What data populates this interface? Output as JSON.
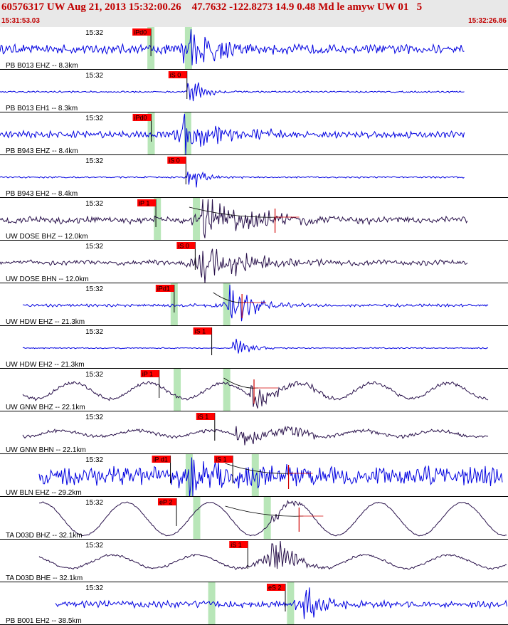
{
  "header": {
    "title": "60576317 UW Aug 21, 2013 15:32:00.26    47.7632 -122.8273 14.9 0.48 Md le amyw UW 01   5",
    "start_time": "15:31:53.03",
    "end_time": "15:32:26.86"
  },
  "colors": {
    "header_background": "#e8e8e8",
    "header_text": "#c00000",
    "trace_blue": "#0000e0",
    "trace_dark": "#28104a",
    "pick_background": "#ff0000",
    "window_shade": "#b8e6b8",
    "separator": "#000000"
  },
  "chart_data": {
    "type": "line",
    "title": "",
    "xlabel": "",
    "ylabel": "",
    "x_range_seconds": [
      0,
      33.83
    ],
    "time_tick_label": "15:32",
    "time_tick_seconds": 6.97,
    "traces": [
      {
        "label": "PB B013 EHZ -- 8.3km",
        "color": "blue",
        "start": 0.0,
        "end": 30.96,
        "noise": 0.16,
        "period": 0.3,
        "long_amp": 0,
        "long_period": 0,
        "arrival": 12.2,
        "amp": 0.92,
        "decay": 2.5,
        "picks": [
          {
            "label": "iPd0",
            "t": 10.05
          }
        ],
        "shades": [
          10.05,
          12.55
        ],
        "curve": null
      },
      {
        "label": "PB B013 EH1 -- 8.3km",
        "color": "blue",
        "start": 0.0,
        "end": 30.96,
        "noise": 0.03,
        "period": 0.3,
        "long_amp": 0,
        "long_period": 0,
        "arrival": 12.5,
        "amp": 0.6,
        "decay": 0.9,
        "picks": [
          {
            "label": "iS 0",
            "t": 12.45
          }
        ],
        "shades": [],
        "curve": null
      },
      {
        "label": "PB B943 EHZ -- 8.4km",
        "color": "blue",
        "start": 0.0,
        "end": 30.96,
        "noise": 0.12,
        "period": 0.3,
        "long_amp": 0,
        "long_period": 0,
        "arrival": 12.2,
        "amp": 0.88,
        "decay": 2.4,
        "picks": [
          {
            "label": "iPd0",
            "t": 10.07
          }
        ],
        "shades": [
          10.07,
          12.5
        ],
        "curve": null
      },
      {
        "label": "PB B943 EH2 -- 8.4km",
        "color": "blue",
        "start": 0.0,
        "end": 30.96,
        "noise": 0.03,
        "period": 0.3,
        "long_amp": 0,
        "long_period": 0,
        "arrival": 12.5,
        "amp": 0.58,
        "decay": 0.9,
        "picks": [
          {
            "label": "iS 0",
            "t": 12.38
          }
        ],
        "shades": [],
        "curve": null
      },
      {
        "label": "UW DOSE BHZ -- 12.0km",
        "color": "dark",
        "start": 0.0,
        "end": 31.2,
        "noise": 0.11,
        "period": 0.38,
        "long_amp": 0.05,
        "long_period": 4.0,
        "arrival": 13.5,
        "amp": 0.82,
        "decay": 3.2,
        "picks": [
          {
            "label": "iP 1",
            "t": 10.38
          }
        ],
        "shades": [
          10.48,
          13.08
        ],
        "curve": {
          "from": 12.6,
          "to": 18.6
        }
      },
      {
        "label": "UW DOSE BHN -- 12.0km",
        "color": "dark",
        "start": 0.0,
        "end": 31.2,
        "noise": 0.08,
        "period": 0.38,
        "long_amp": 0.04,
        "long_period": 4.0,
        "arrival": 13.2,
        "amp": 0.8,
        "decay": 3.4,
        "picks": [
          {
            "label": "iS 0",
            "t": 13.0
          }
        ],
        "shades": [],
        "curve": null
      },
      {
        "label": "UW HDW EHZ -- 21.3km",
        "color": "blue",
        "start": 1.5,
        "end": 32.5,
        "noise": 0.05,
        "period": 0.3,
        "long_amp": 0,
        "long_period": 0,
        "arrival": 15.3,
        "amp": 0.78,
        "decay": 1.5,
        "picks": [
          {
            "label": "iPd1",
            "t": 11.6
          }
        ],
        "shades": [
          11.6,
          15.1
        ],
        "curve": {
          "from": 14.2,
          "to": 16.4
        }
      },
      {
        "label": "UW HDW EH2 -- 21.3km",
        "color": "blue",
        "start": 1.5,
        "end": 32.5,
        "noise": 0.02,
        "period": 0.3,
        "long_amp": 0,
        "long_period": 0,
        "arrival": 15.5,
        "amp": 0.42,
        "decay": 1.0,
        "picks": [
          {
            "label": "iS 1",
            "t": 14.1
          }
        ],
        "shades": [],
        "curve": null
      },
      {
        "label": "UW GNW BHZ -- 22.1km",
        "color": "dark",
        "start": 1.5,
        "end": 32.5,
        "noise": 0.06,
        "period": 0.35,
        "long_amp": 0.38,
        "long_period": 5.0,
        "arrival": 16.6,
        "amp": 0.42,
        "decay": 2.0,
        "picks": [
          {
            "label": "iP 1",
            "t": 10.6
          }
        ],
        "shades": [
          11.8,
          15.1
        ],
        "curve": {
          "from": 14.9,
          "to": 17.2
        }
      },
      {
        "label": "UW GNW BHN -- 22.1km",
        "color": "dark",
        "start": 1.5,
        "end": 32.5,
        "noise": 0.06,
        "period": 0.35,
        "long_amp": 0.15,
        "long_period": 5.0,
        "arrival": 15.7,
        "amp": 0.46,
        "decay": 3.2,
        "picks": [
          {
            "label": "iS 1",
            "t": 14.3
          }
        ],
        "shades": [],
        "curve": null
      },
      {
        "label": "UW BLN EHZ -- 29.2km",
        "color": "blue",
        "start": 2.6,
        "end": 33.5,
        "noise": 0.36,
        "period": 0.25,
        "long_amp": 0,
        "long_period": 0,
        "arrival": 12.6,
        "amp": 0.62,
        "decay": 4.0,
        "picks": [
          {
            "label": "iP d1",
            "t": 11.35
          },
          {
            "label": "iS 1",
            "t": 15.5
          }
        ],
        "shades": [
          12.6,
          17.0
        ],
        "curve": {
          "from": 15.0,
          "to": 19.5
        }
      },
      {
        "label": "TA D03D BHZ -- 32.1km",
        "color": "dark",
        "start": 2.6,
        "end": 33.8,
        "noise": 0.02,
        "period": 0.35,
        "long_amp": 0.8,
        "long_period": 5.6,
        "arrival": 18.0,
        "amp": 0.3,
        "decay": 1.2,
        "picks": [
          {
            "label": "eP 2",
            "t": 11.75
          }
        ],
        "shades": [
          13.1,
          17.8
        ],
        "curve": {
          "from": 15.0,
          "to": 20.2
        }
      },
      {
        "label": "TA D03D BHE -- 32.1km",
        "color": "dark",
        "start": 2.6,
        "end": 33.8,
        "noise": 0.04,
        "period": 0.35,
        "long_amp": 0.32,
        "long_period": 5.6,
        "arrival": 17.9,
        "amp": 0.75,
        "decay": 1.5,
        "picks": [
          {
            "label": "iS 1",
            "t": 16.5
          }
        ],
        "shades": [],
        "curve": null
      },
      {
        "label": "PB B001 EH2 -- 38.5km",
        "color": "blue",
        "start": 3.7,
        "end": 33.8,
        "noise": 0.12,
        "period": 0.3,
        "long_amp": 0,
        "long_period": 0,
        "arrival": 20.2,
        "amp": 0.75,
        "decay": 1.2,
        "picks": [
          {
            "label": "eS 2",
            "t": 19.0
          }
        ],
        "shades": [
          14.1,
          19.35
        ],
        "curve": null
      }
    ]
  }
}
